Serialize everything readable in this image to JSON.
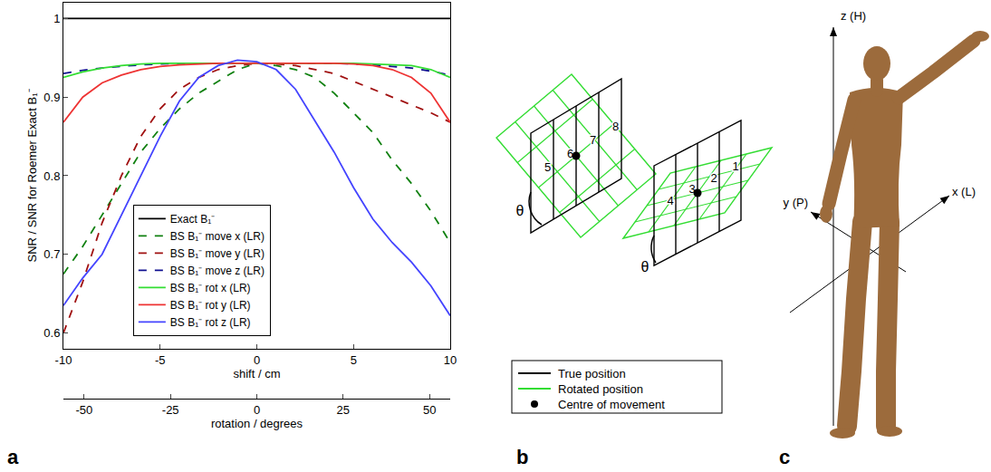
{
  "chart_data": {
    "type": "line",
    "x_label": "shift / cm",
    "y_label": "SNR / SNR for Roemer Exact B₁⁻",
    "x2_label": "rotation / degrees",
    "x": [
      -10,
      -9,
      -8,
      -7,
      -6,
      -5,
      -4,
      -3,
      -2,
      -1,
      0,
      1,
      2,
      3,
      4,
      5,
      6,
      7,
      8,
      9,
      10
    ],
    "xlim": [
      -10,
      10
    ],
    "xticks": [
      -10,
      -5,
      0,
      5,
      10
    ],
    "x2lim": [
      -56,
      56
    ],
    "x2ticks": [
      -50,
      -25,
      0,
      25,
      50
    ],
    "ylim": [
      0.58,
      1.02
    ],
    "yticks": [
      0.6,
      0.7,
      0.8,
      0.9,
      1
    ],
    "grid": false,
    "legend": "center",
    "series": [
      {
        "name": "Exact B₁⁻",
        "color": "#000000",
        "line_style": "solid",
        "values": [
          1,
          1,
          1,
          1,
          1,
          1,
          1,
          1,
          1,
          1,
          1,
          1,
          1,
          1,
          1,
          1,
          1,
          1,
          1,
          1,
          1
        ]
      },
      {
        "name": "BS B₁⁻ move x (LR)",
        "color": "#108010",
        "line_style": "dashed",
        "values": [
          0.675,
          0.71,
          0.75,
          0.79,
          0.83,
          0.86,
          0.885,
          0.905,
          0.92,
          0.935,
          0.943,
          0.94,
          0.935,
          0.925,
          0.905,
          0.88,
          0.855,
          0.82,
          0.79,
          0.755,
          0.715
        ]
      },
      {
        "name": "BS B₁⁻ move y (LR)",
        "color": "#a01010",
        "line_style": "dashed",
        "values": [
          0.6,
          0.665,
          0.74,
          0.8,
          0.85,
          0.885,
          0.91,
          0.925,
          0.935,
          0.94,
          0.943,
          0.942,
          0.94,
          0.935,
          0.93,
          0.92,
          0.91,
          0.9,
          0.89,
          0.88,
          0.868
        ]
      },
      {
        "name": "BS B₁⁻ move z (LR)",
        "color": "#101090",
        "line_style": "dashed",
        "values": [
          0.93,
          0.934,
          0.937,
          0.939,
          0.941,
          0.942,
          0.943,
          0.943,
          0.943,
          0.943,
          0.943,
          0.943,
          0.943,
          0.943,
          0.943,
          0.942,
          0.941,
          0.939,
          0.937,
          0.933,
          0.928
        ]
      },
      {
        "name": "BS B₁⁻ rot x (LR)",
        "color": "#33dd33",
        "line_style": "solid",
        "values": [
          0.925,
          0.932,
          0.937,
          0.94,
          0.942,
          0.943,
          0.943,
          0.943,
          0.943,
          0.943,
          0.943,
          0.943,
          0.943,
          0.943,
          0.943,
          0.943,
          0.942,
          0.941,
          0.94,
          0.935,
          0.925
        ]
      },
      {
        "name": "BS B₁⁻ rot y (LR)",
        "color": "#ee3333",
        "line_style": "solid",
        "values": [
          0.868,
          0.9,
          0.918,
          0.928,
          0.935,
          0.939,
          0.941,
          0.942,
          0.943,
          0.943,
          0.943,
          0.943,
          0.943,
          0.943,
          0.943,
          0.942,
          0.94,
          0.935,
          0.925,
          0.905,
          0.868
        ]
      },
      {
        "name": "BS B₁⁻ rot z (LR)",
        "color": "#4444ff",
        "line_style": "solid",
        "values": [
          0.635,
          0.67,
          0.7,
          0.75,
          0.8,
          0.85,
          0.895,
          0.925,
          0.94,
          0.947,
          0.945,
          0.935,
          0.91,
          0.87,
          0.83,
          0.785,
          0.745,
          0.715,
          0.69,
          0.66,
          0.622
        ]
      }
    ]
  },
  "diagram": {
    "left_stripes": [
      "5",
      "6",
      "7",
      "8"
    ],
    "right_stripes": [
      "4",
      "3",
      "2",
      "1"
    ],
    "angle_label": "θ",
    "legend": [
      {
        "label": "True position",
        "color": "#000000",
        "marker": "line"
      },
      {
        "label": "Rotated position",
        "color": "#33dd33",
        "marker": "line"
      },
      {
        "label": "Centre of movement",
        "color": "#000000",
        "marker": "dot"
      }
    ]
  },
  "model": {
    "color": "#9c6b3c",
    "axes": [
      "z (H)",
      "y (P)",
      "x (L)"
    ]
  },
  "panel_labels": [
    "a",
    "b",
    "c"
  ]
}
